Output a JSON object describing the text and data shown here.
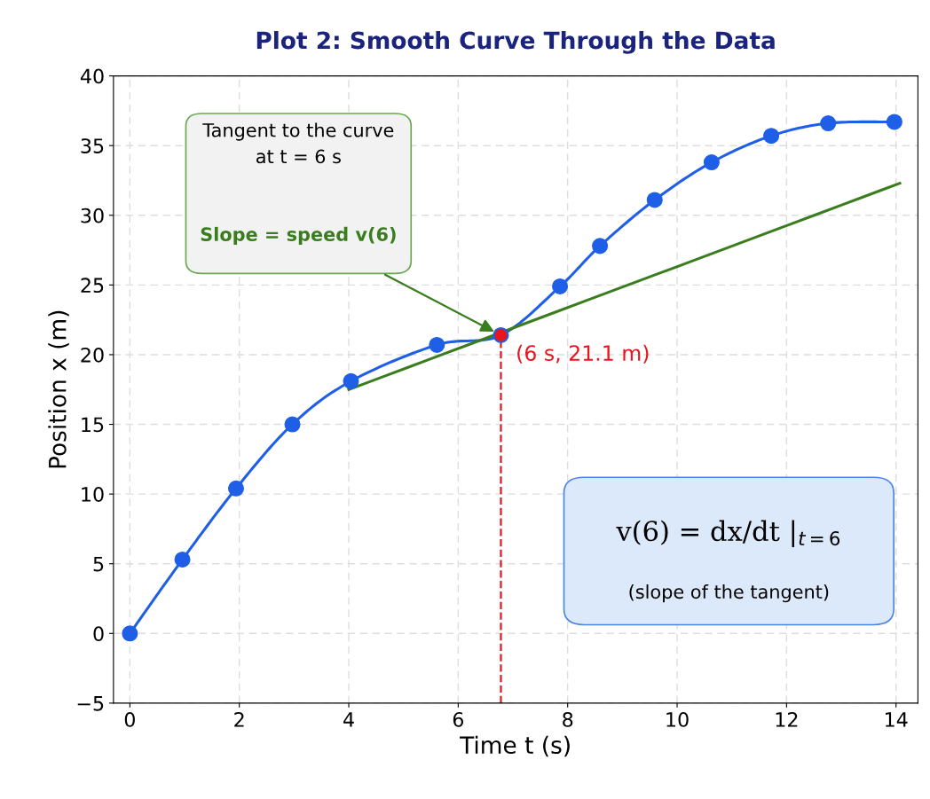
{
  "chart_data": {
    "type": "line",
    "title": "Plot 2: Smooth Curve Through the Data",
    "xlabel": "Time t (s)",
    "ylabel": "Position x (m)",
    "xlim": [
      -0.3,
      14.4
    ],
    "ylim": [
      -5,
      40
    ],
    "xticks": [
      0,
      2,
      4,
      6,
      8,
      10,
      12,
      14
    ],
    "yticks": [
      -5,
      0,
      5,
      10,
      15,
      20,
      25,
      30,
      35,
      40
    ],
    "grid": true,
    "line_style": "solid",
    "series": [
      {
        "color": "#1f5fe8",
        "marker": "circle",
        "x": [
          0,
          0.96,
          1.94,
          2.97,
          4.04,
          5.61,
          6.78,
          7.86,
          8.59,
          9.59,
          10.63,
          11.72,
          12.76,
          13.97
        ],
        "values": [
          0,
          5.3,
          10.4,
          15.0,
          18.1,
          20.7,
          21.4,
          24.9,
          27.8,
          31.1,
          33.8,
          35.7,
          36.6,
          36.7
        ]
      },
      {
        "color": "#3a7d1e",
        "marker": "none",
        "x": [
          4.0,
          14.07
        ],
        "values": [
          17.5,
          32.3
        ]
      },
      {
        "type": "scatter",
        "color": "#e8141e",
        "marker": "circle",
        "x": [
          6.78
        ],
        "values": [
          21.4
        ]
      }
    ],
    "ref_lines": [
      {
        "axis": "x",
        "value": 6.78,
        "color": "#e8141e",
        "line_style": "dashed"
      }
    ],
    "annotations": [
      "Tangent to the curve\nat t = 6 s",
      "Slope = speed v(6)",
      "(6 s, 21.1 m)",
      "v(6) = dx/dt |$_{t=6}$",
      "(slope of the tangent)"
    ]
  }
}
